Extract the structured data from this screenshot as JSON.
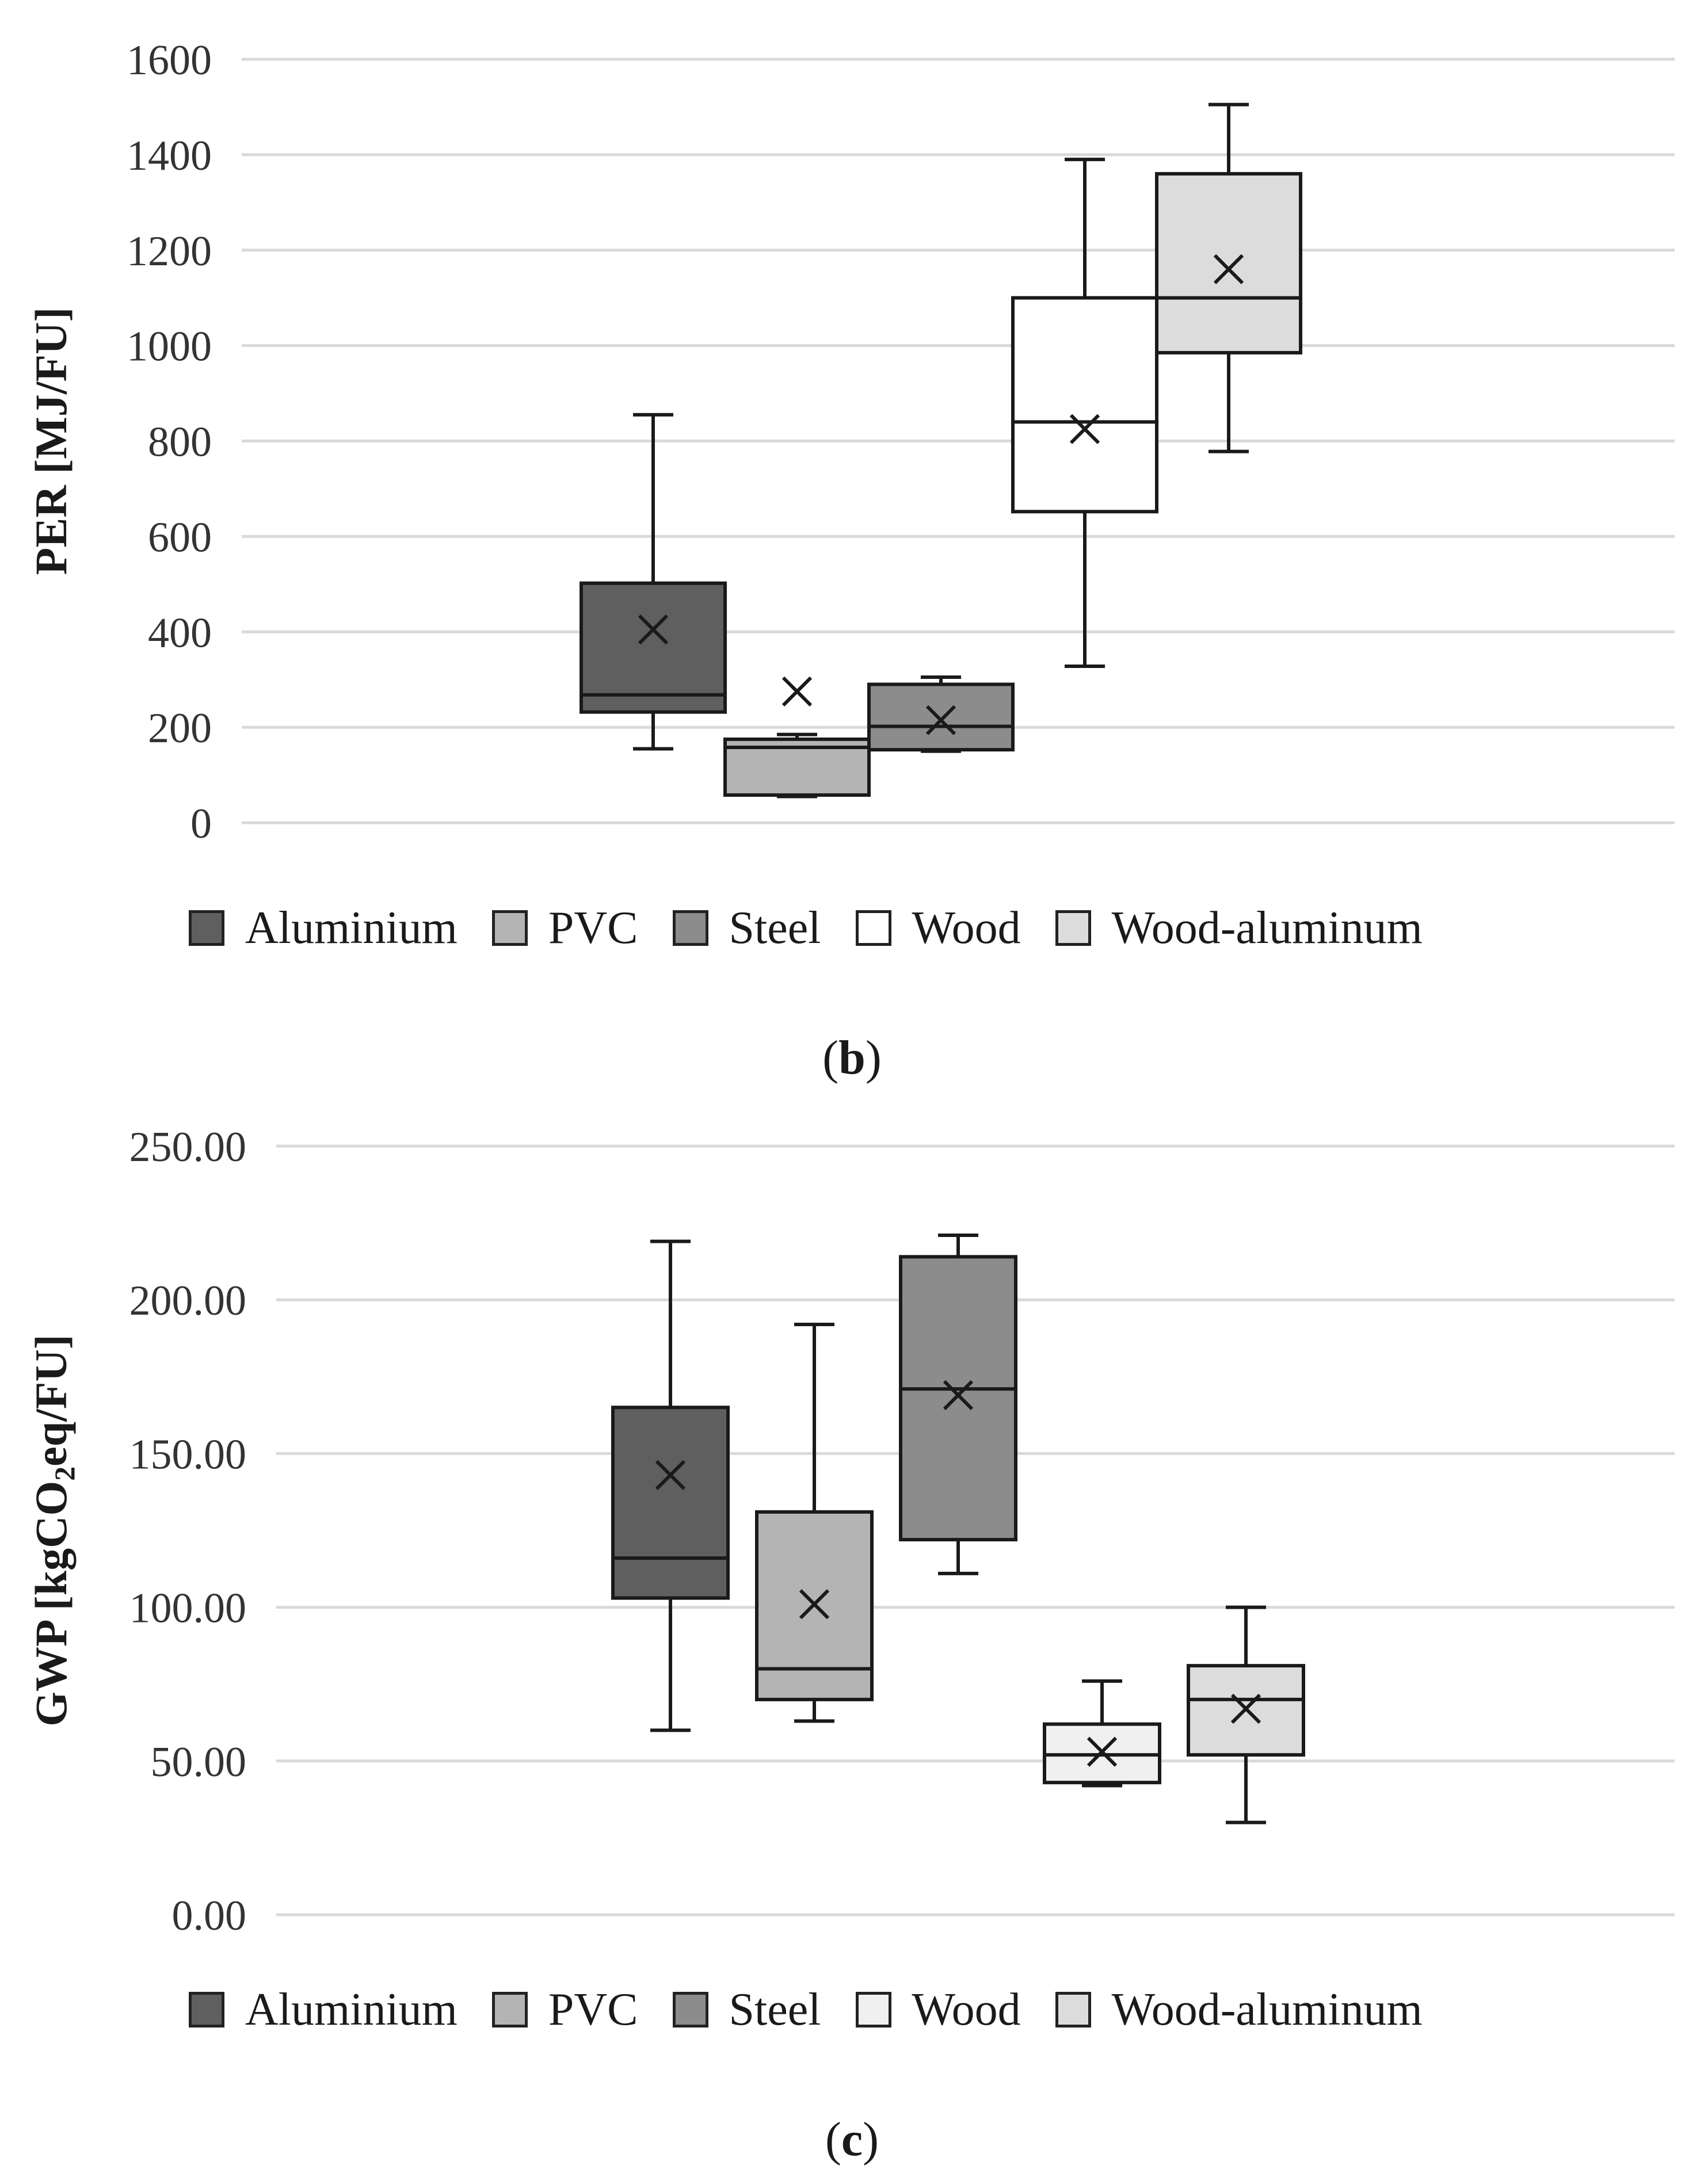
{
  "chart_data": [
    {
      "type": "box",
      "panel_label": "b",
      "ylabel": "PER [MJ/FU]",
      "ylim": [
        0,
        1600
      ],
      "yticks": [
        0,
        200,
        400,
        600,
        800,
        1000,
        1200,
        1400,
        1600
      ],
      "ytick_labels": [
        "0",
        "200",
        "400",
        "600",
        "800",
        "1000",
        "1200",
        "1400",
        "1600"
      ],
      "grid": true,
      "legend_position": "bottom",
      "series": [
        {
          "name": "Aluminium",
          "color": "#5f5f5f",
          "min": 155,
          "q1": 232,
          "median": 268,
          "q3": 502,
          "max": 855,
          "mean": 405
        },
        {
          "name": "PVC",
          "color": "#b4b4b4",
          "min": 55,
          "q1": 58,
          "median": 158,
          "q3": 175,
          "max": 185,
          "mean": 275
        },
        {
          "name": "Steel",
          "color": "#8c8c8c",
          "min": 150,
          "q1": 153,
          "median": 202,
          "q3": 290,
          "max": 305,
          "mean": 215
        },
        {
          "name": "Wood",
          "color": "#ffffff",
          "min": 328,
          "q1": 652,
          "median": 840,
          "q3": 1100,
          "max": 1390,
          "mean": 825
        },
        {
          "name": "Wood-aluminum",
          "color": "#dcdcdc",
          "min": 778,
          "q1": 985,
          "median": 1100,
          "q3": 1360,
          "max": 1505,
          "mean": 1160
        }
      ]
    },
    {
      "type": "box",
      "panel_label": "c",
      "ylabel_prefix": "GWP [kgCO",
      "ylabel_sub": "2",
      "ylabel_suffix": "eq/FU]",
      "ylim": [
        0,
        250
      ],
      "yticks": [
        0,
        50,
        100,
        150,
        200,
        250
      ],
      "ytick_labels": [
        "0.00",
        "50.00",
        "100.00",
        "150.00",
        "200.00",
        "250.00"
      ],
      "grid": true,
      "legend_position": "bottom",
      "series": [
        {
          "name": "Aluminium",
          "color": "#5f5f5f",
          "min": 60,
          "q1": 103,
          "median": 116,
          "q3": 165,
          "max": 219,
          "mean": 143
        },
        {
          "name": "PVC",
          "color": "#b4b4b4",
          "min": 63,
          "q1": 70,
          "median": 80,
          "q3": 131,
          "max": 192,
          "mean": 101
        },
        {
          "name": "Steel",
          "color": "#8c8c8c",
          "min": 111,
          "q1": 122,
          "median": 171,
          "q3": 214,
          "max": 221,
          "mean": 169
        },
        {
          "name": "Wood",
          "color": "#f0f0f0",
          "min": 42,
          "q1": 43,
          "median": 52,
          "q3": 62,
          "max": 76,
          "mean": 53
        },
        {
          "name": "Wood-aluminum",
          "color": "#dcdcdc",
          "min": 30,
          "q1": 52,
          "median": 70,
          "q3": 81,
          "max": 100,
          "mean": 67
        }
      ]
    }
  ]
}
